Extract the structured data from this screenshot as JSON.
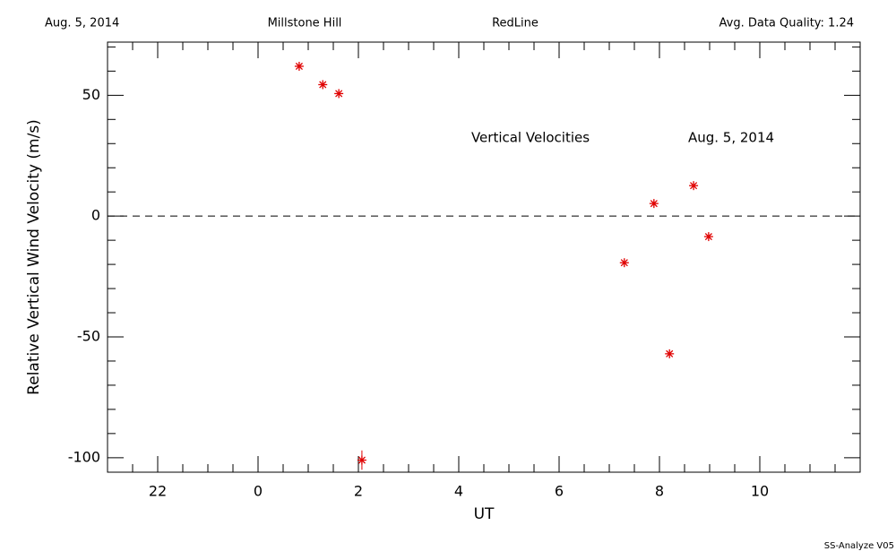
{
  "chart_data": {
    "type": "scatter",
    "header": [
      "Aug. 5, 2014",
      "Millstone Hill",
      "RedLine",
      "Avg. Data Quality: 1.24"
    ],
    "annotations": [
      "Vertical Velocities",
      "Aug. 5, 2014"
    ],
    "footer": "SS-Analyze V05",
    "xlabel": "UT",
    "ylabel": "Relative Vertical Wind Velocity (m/s)",
    "color": "#e00000",
    "x": [
      0.82,
      1.29,
      1.61,
      2.07,
      7.3,
      7.89,
      8.2,
      8.68,
      8.98
    ],
    "values": [
      62,
      54.4,
      50.7,
      -101,
      -19.3,
      5.2,
      -57,
      12.6,
      -8.5
    ],
    "errors": [
      0,
      0,
      0,
      4,
      0,
      0,
      0,
      0,
      0
    ],
    "xlim": [
      -3,
      12
    ],
    "ylim": [
      -106,
      72
    ],
    "xticks": [
      {
        "value": -2,
        "label": "22"
      },
      0,
      2,
      4,
      6,
      8,
      10
    ],
    "yticks": [
      -100,
      -50,
      0,
      50
    ],
    "xminorticks": [
      -2.5,
      -1.5,
      -1,
      -0.5,
      0.5,
      1,
      1.5,
      2.5,
      3,
      3.5,
      4.5,
      5,
      5.5,
      6.5,
      7,
      7.5,
      8.5,
      9,
      9.5,
      10.5,
      11,
      11.5
    ],
    "yminorticks": [
      -90,
      -80,
      -70,
      -60,
      -40,
      -30,
      -20,
      -10,
      10,
      20,
      30,
      40,
      60,
      70
    ],
    "hline": 0
  }
}
